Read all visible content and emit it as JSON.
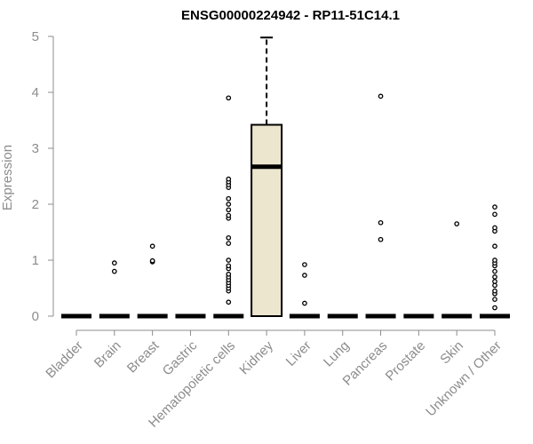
{
  "chart_data": {
    "type": "boxplot",
    "title": "ENSG00000224942 - RP11-51C14.1",
    "ylabel": "Expression",
    "xlabel": "",
    "ylim": [
      0,
      5
    ],
    "yticks": [
      0,
      1,
      2,
      3,
      4,
      5
    ],
    "grid": false,
    "box_fill": "#ede6cf",
    "categories": [
      "Bladder",
      "Brain",
      "Breast",
      "Gastric",
      "Hematopoietic cells",
      "Kidney",
      "Liver",
      "Lung",
      "Pancreas",
      "Prostate",
      "Skin",
      "Unknown / Other"
    ],
    "boxes": [
      {
        "category": "Bladder",
        "median": 0,
        "q1": 0,
        "q3": 0,
        "whisker_low": 0,
        "whisker_high": 0,
        "outliers": []
      },
      {
        "category": "Brain",
        "median": 0,
        "q1": 0,
        "q3": 0,
        "whisker_low": 0,
        "whisker_high": 0,
        "outliers": [
          0.8,
          0.95
        ]
      },
      {
        "category": "Breast",
        "median": 0,
        "q1": 0,
        "q3": 0,
        "whisker_low": 0,
        "whisker_high": 0,
        "outliers": [
          0.97,
          0.99,
          1.25
        ]
      },
      {
        "category": "Gastric",
        "median": 0,
        "q1": 0,
        "q3": 0,
        "whisker_low": 0,
        "whisker_high": 0,
        "outliers": []
      },
      {
        "category": "Hematopoietic cells",
        "median": 0,
        "q1": 0,
        "q3": 0,
        "whisker_low": 0,
        "whisker_high": 0,
        "outliers": [
          0.25,
          0.45,
          0.5,
          0.55,
          0.6,
          0.65,
          0.7,
          0.75,
          0.85,
          0.9,
          1.0,
          1.3,
          1.4,
          1.75,
          1.8,
          1.9,
          2.0,
          2.1,
          2.3,
          2.35,
          2.4,
          2.45,
          3.9
        ]
      },
      {
        "category": "Kidney",
        "median": 2.67,
        "q1": 0,
        "q3": 3.42,
        "whisker_low": 0,
        "whisker_high": 4.98,
        "outliers": []
      },
      {
        "category": "Liver",
        "median": 0,
        "q1": 0,
        "q3": 0,
        "whisker_low": 0,
        "whisker_high": 0,
        "outliers": [
          0.23,
          0.73,
          0.92
        ]
      },
      {
        "category": "Lung",
        "median": 0,
        "q1": 0,
        "q3": 0,
        "whisker_low": 0,
        "whisker_high": 0,
        "outliers": []
      },
      {
        "category": "Pancreas",
        "median": 0,
        "q1": 0,
        "q3": 0,
        "whisker_low": 0,
        "whisker_high": 0,
        "outliers": [
          1.37,
          1.67,
          3.93
        ]
      },
      {
        "category": "Prostate",
        "median": 0,
        "q1": 0,
        "q3": 0,
        "whisker_low": 0,
        "whisker_high": 0,
        "outliers": []
      },
      {
        "category": "Skin",
        "median": 0,
        "q1": 0,
        "q3": 0,
        "whisker_low": 0,
        "whisker_high": 0,
        "outliers": [
          1.65
        ]
      },
      {
        "category": "Unknown / Other",
        "median": 0,
        "q1": 0,
        "q3": 0,
        "whisker_low": 0,
        "whisker_high": 0,
        "outliers": [
          0.15,
          0.3,
          0.4,
          0.45,
          0.55,
          0.62,
          0.7,
          0.8,
          0.9,
          0.95,
          1.0,
          1.25,
          1.52,
          1.58,
          1.82,
          1.95
        ]
      }
    ]
  }
}
